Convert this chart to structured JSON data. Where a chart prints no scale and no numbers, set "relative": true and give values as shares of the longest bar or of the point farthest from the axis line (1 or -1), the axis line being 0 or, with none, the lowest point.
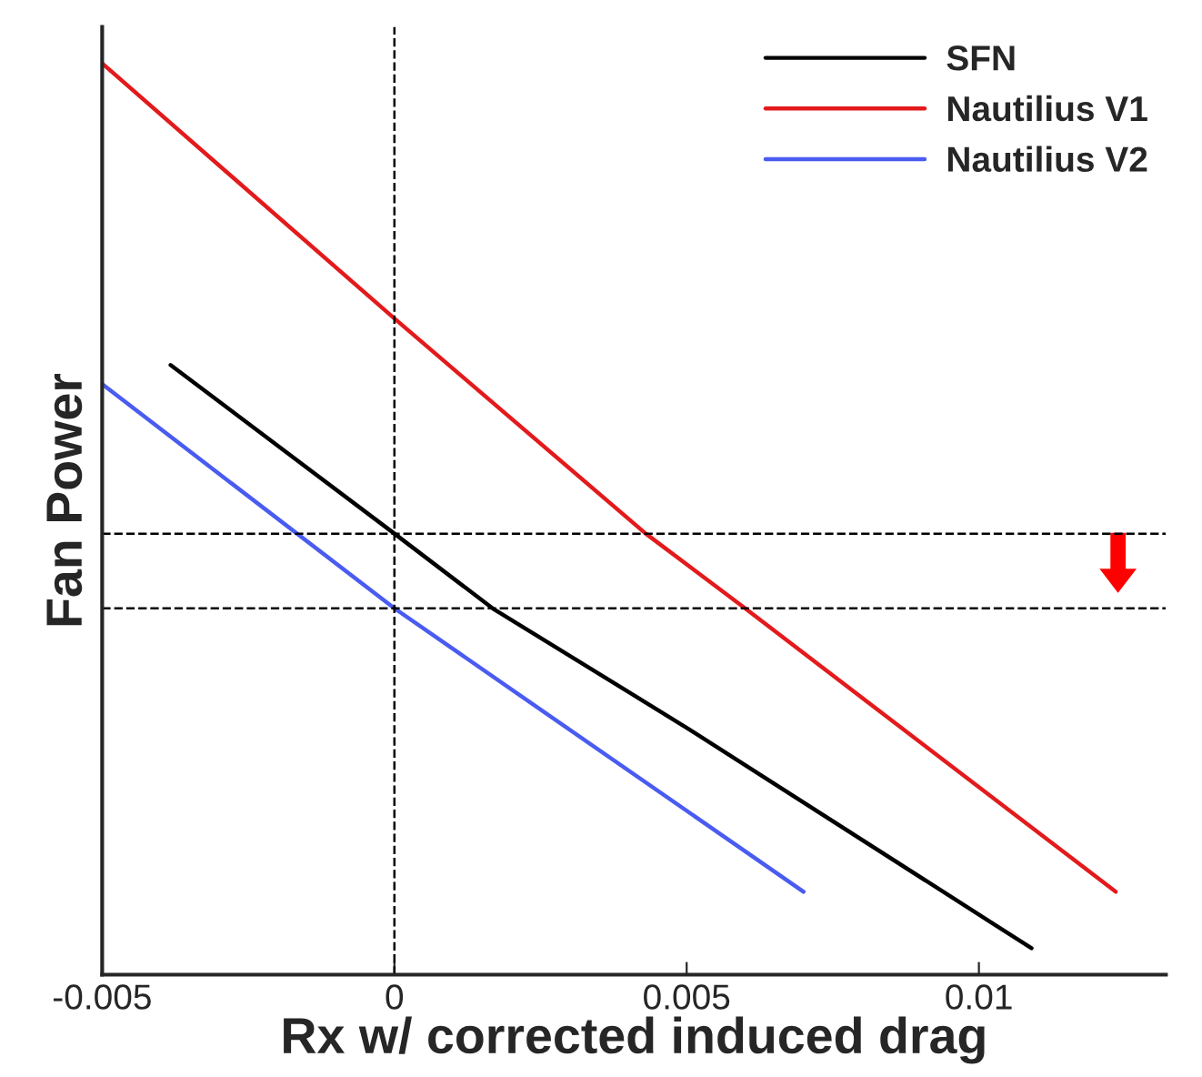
{
  "chart_data": {
    "type": "line",
    "relative": true,
    "xlabel": "Rx w/ corrected induced drag",
    "ylabel": "Fan Power",
    "xlim": [
      -0.005,
      0.0132
    ],
    "xticks": [
      {
        "value": -0.005,
        "label": "-0.005"
      },
      0,
      0.005,
      0.01
    ],
    "tick_labels": "x",
    "legend": "top right",
    "line_style": "solid",
    "marker": "none",
    "series": [
      {
        "name": "SFN",
        "color": "#000000",
        "x": [
          -0.00383,
          0,
          0.00168,
          0.005,
          0.0109
        ],
        "values": [
          0.669,
          0.484,
          0.402,
          0.271,
          0.029
        ]
      },
      {
        "name": "Nautilius V1",
        "color": "#e31a1c",
        "x": [
          -0.005,
          0,
          0.0043,
          0.006,
          0.01234
        ],
        "values": [
          1.0,
          0.72,
          0.484,
          0.402,
          0.091
        ]
      },
      {
        "name": "Nautilius V2",
        "color": "#4a5cf0",
        "x": [
          -0.005,
          0,
          0.007
        ],
        "values": [
          0.648,
          0.402,
          0.091
        ]
      }
    ],
    "ref_lines": [
      {
        "axis": "x",
        "value": 0,
        "color": "#000000",
        "line_style": "dashed"
      },
      {
        "axis": "y",
        "value": 0.484,
        "color": "#000000",
        "line_style": "dashed"
      },
      {
        "axis": "y",
        "value": 0.402,
        "color": "#000000",
        "line_style": "dashed"
      }
    ]
  }
}
